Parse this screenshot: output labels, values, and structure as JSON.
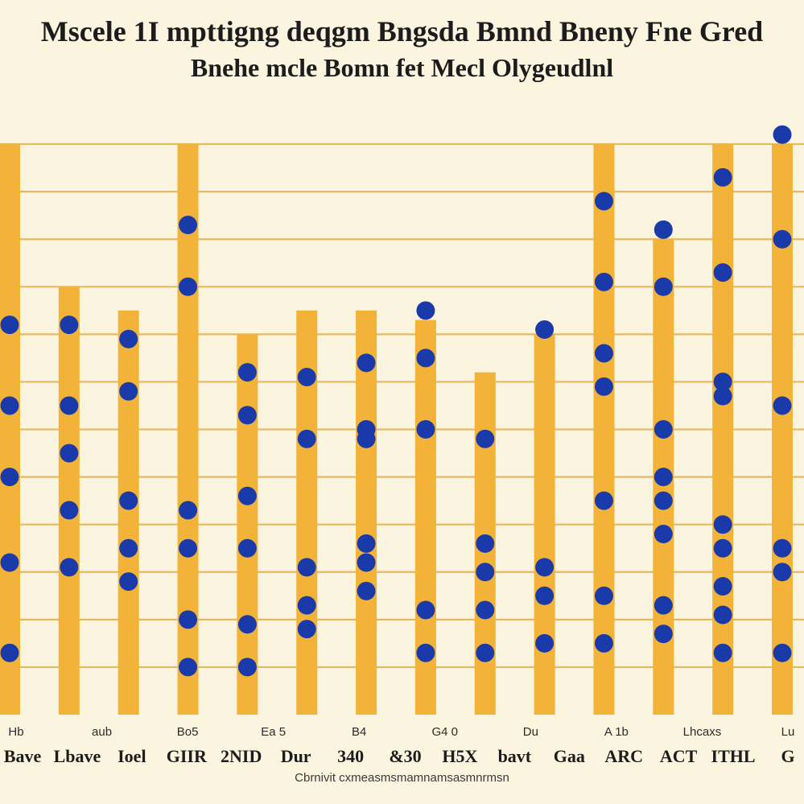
{
  "title_line1": "Mscele 1I mpttigng deqgm Bngsda Bmnd Bneny Fne Gred",
  "title_line2": "Bnehe mcle Bomn fet Mecl Olygeudlnl",
  "caption": "Cbrnivit cxmeasmsmamnamsasmnrmsn",
  "colors": {
    "bar": "#f2b338",
    "dot": "#1a3aaa",
    "grid": "#e6b860",
    "background": "#fbf4de"
  },
  "chart_data": {
    "type": "bar",
    "title": "Mscele 1I mpttigng deqgm Bngsda Bmnd Bneny Fne Gred",
    "subtitle": "Bnehe mcle Bomn fet Mecl Olygeudlnl",
    "xlabel": "",
    "ylabel": "",
    "ylim": [
      0,
      13
    ],
    "grid": true,
    "categories": [
      "",
      "",
      "",
      "",
      "",
      "",
      "",
      "",
      "",
      "",
      "",
      "",
      "",
      ""
    ],
    "tick_labels_top": [
      "Hb",
      "aub",
      "Bo5",
      "Ea 5",
      "B4",
      "G4 0",
      "Du",
      "A 1b",
      "Lhcaxs",
      "Lu"
    ],
    "tick_labels_bottom": [
      "Bave",
      "Lbave",
      "Ioel",
      "GIIR",
      "2NID",
      "Dur",
      "340",
      "&30",
      "H5X",
      "bavt",
      "Gaa",
      "ARC",
      "ACT",
      "ITHL",
      "G"
    ],
    "series": [
      {
        "type": "bar",
        "values": [
          12.0,
          9.0,
          8.5,
          12.0,
          8.0,
          8.5,
          8.5,
          8.3,
          7.2,
          8.0,
          12.0,
          10.0,
          12.0,
          12.0
        ]
      },
      {
        "type": "scatter",
        "points": [
          [
            0,
            8.2
          ],
          [
            0,
            6.5
          ],
          [
            0,
            5.0
          ],
          [
            0,
            3.2
          ],
          [
            0,
            1.3
          ],
          [
            1,
            8.2
          ],
          [
            1,
            6.5
          ],
          [
            1,
            5.5
          ],
          [
            1,
            4.3
          ],
          [
            1,
            3.1
          ],
          [
            2,
            7.9
          ],
          [
            2,
            6.8
          ],
          [
            2,
            4.5
          ],
          [
            2,
            3.5
          ],
          [
            2,
            2.8
          ],
          [
            3,
            10.3
          ],
          [
            3,
            9.0
          ],
          [
            3,
            4.3
          ],
          [
            3,
            3.5
          ],
          [
            3,
            2.0
          ],
          [
            3,
            1.0
          ],
          [
            4,
            7.2
          ],
          [
            4,
            6.3
          ],
          [
            4,
            4.6
          ],
          [
            4,
            3.5
          ],
          [
            4,
            1.9
          ],
          [
            4,
            1.0
          ],
          [
            5,
            7.1
          ],
          [
            5,
            5.8
          ],
          [
            5,
            3.1
          ],
          [
            5,
            2.3
          ],
          [
            5,
            1.8
          ],
          [
            6,
            7.4
          ],
          [
            6,
            6.0
          ],
          [
            6,
            5.8
          ],
          [
            6,
            3.6
          ],
          [
            6,
            3.2
          ],
          [
            6,
            2.6
          ],
          [
            7,
            8.5
          ],
          [
            7,
            7.5
          ],
          [
            7,
            6.0
          ],
          [
            7,
            2.2
          ],
          [
            7,
            1.3
          ],
          [
            8,
            5.8
          ],
          [
            8,
            3.6
          ],
          [
            8,
            3.0
          ],
          [
            8,
            2.2
          ],
          [
            8,
            1.3
          ],
          [
            9,
            8.1
          ],
          [
            9,
            3.1
          ],
          [
            9,
            2.5
          ],
          [
            9,
            1.5
          ],
          [
            10,
            10.8
          ],
          [
            10,
            9.1
          ],
          [
            10,
            7.6
          ],
          [
            10,
            6.9
          ],
          [
            10,
            4.5
          ],
          [
            10,
            2.5
          ],
          [
            10,
            1.5
          ],
          [
            11,
            10.2
          ],
          [
            11,
            9.0
          ],
          [
            11,
            6.0
          ],
          [
            11,
            5.0
          ],
          [
            11,
            4.5
          ],
          [
            11,
            3.8
          ],
          [
            11,
            2.3
          ],
          [
            11,
            1.7
          ],
          [
            12,
            11.3
          ],
          [
            12,
            9.3
          ],
          [
            12,
            7.0
          ],
          [
            12,
            6.7
          ],
          [
            12,
            4.0
          ],
          [
            12,
            3.5
          ],
          [
            12,
            2.7
          ],
          [
            12,
            2.1
          ],
          [
            12,
            1.3
          ],
          [
            13,
            12.2
          ],
          [
            13,
            10.0
          ],
          [
            13,
            6.5
          ],
          [
            13,
            3.5
          ],
          [
            13,
            3.0
          ],
          [
            13,
            1.3
          ]
        ]
      }
    ]
  }
}
